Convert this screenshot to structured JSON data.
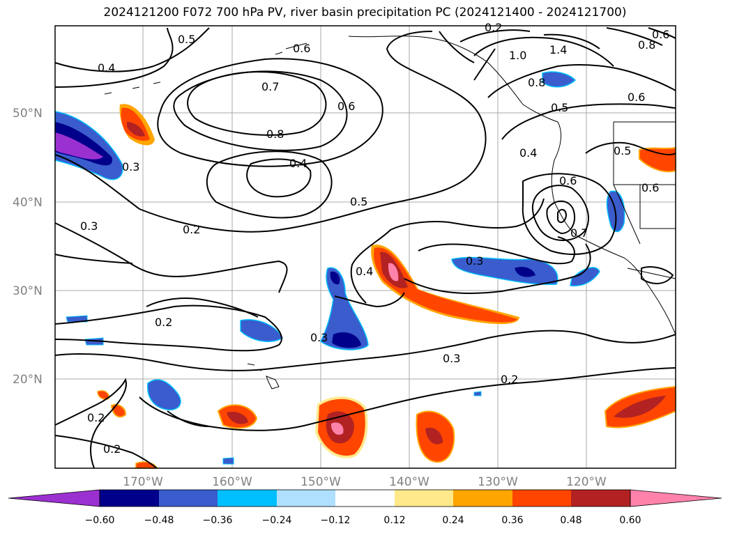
{
  "title": "2024121200 F072 700 hPa PV, river basin precipitation PC (2024121400 - 2024121700)",
  "map": {
    "lat_ticks": [
      "50°N",
      "40°N",
      "30°N",
      "20°N"
    ],
    "lon_ticks": [
      "170°W",
      "160°W",
      "150°W",
      "140°W",
      "130°W",
      "120°W"
    ],
    "contour_labels": [
      "0.5",
      "0.6",
      "0.4",
      "0.7",
      "0.6",
      "0.8",
      "0.4",
      "0.3",
      "0.2",
      "0.5",
      "0.3",
      "0.4",
      "0.2",
      "0.3",
      "0.3",
      "0.2",
      "0.2",
      "0.2",
      "1.0",
      "1.4",
      "0.8",
      "0.6",
      "0.5",
      "0.4",
      "0.6",
      "0.5",
      "0.6",
      "0.7",
      "0.3",
      "0.2",
      "0.6",
      "0.8"
    ]
  },
  "colorbar": {
    "ticks": [
      "−0.60",
      "−0.48",
      "−0.36",
      "−0.24",
      "−0.12",
      "0.12",
      "0.24",
      "0.36",
      "0.48",
      "0.60"
    ],
    "colors": [
      "#9b30d0",
      "#00008b",
      "#3a5ccc",
      "#00bfff",
      "#b0e0ff",
      "#ffffff",
      "#ffe98a",
      "#ffa500",
      "#ff4500",
      "#b22222",
      "#ff82ab"
    ]
  }
}
